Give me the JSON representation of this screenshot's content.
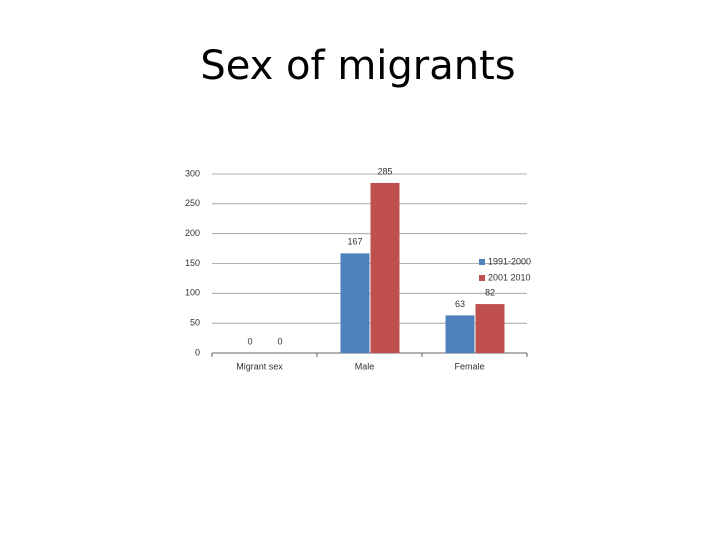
{
  "chart_data": {
    "type": "bar",
    "title": "Sex of migrants",
    "categories": [
      "Migrant sex",
      "Male",
      "Female"
    ],
    "series": [
      {
        "name": "1991-2000",
        "color": "#4f81bd",
        "values": [
          0,
          167,
          63
        ]
      },
      {
        "name": "2001 2010",
        "color": "#c0504d",
        "values": [
          0,
          285,
          82
        ]
      }
    ],
    "ylim": [
      0,
      300
    ],
    "yticks": [
      0,
      50,
      100,
      150,
      200,
      250,
      300
    ],
    "grid": true,
    "legend": "right"
  }
}
